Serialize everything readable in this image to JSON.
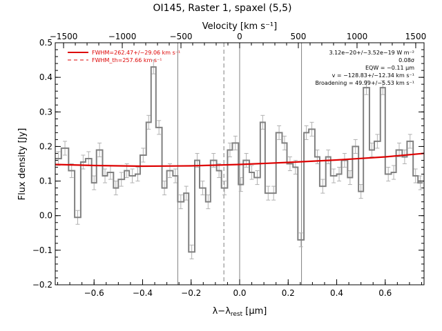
{
  "chart_data": {
    "type": "line",
    "title": "OI145, Raster 1, spaxel (5,5)",
    "xlabel_main": "λ−λ",
    "xlabel_sub": "rest",
    "xlabel_unit": " [μm]",
    "ylabel": "Flux density [Jy]",
    "top_axis_label": "Velocity [km s⁻¹]",
    "xlim": [
      -0.76,
      0.76
    ],
    "ylim": [
      -0.2,
      0.5
    ],
    "xticks": [
      -0.6,
      -0.4,
      -0.2,
      0.0,
      0.2,
      0.4,
      0.6
    ],
    "xtick_labels": [
      "−0.6",
      "−0.4",
      "−0.2",
      "0.0",
      "0.2",
      "0.4",
      "0.6"
    ],
    "yticks": [
      -0.2,
      -0.1,
      0.0,
      0.1,
      0.2,
      0.3,
      0.4,
      0.5
    ],
    "ytick_labels": [
      "−0.2",
      "−0.1",
      "0.0",
      "0.1",
      "0.2",
      "0.3",
      "0.4",
      "0.5"
    ],
    "top_ticks": [
      -1500,
      -1000,
      -500,
      0,
      500,
      1000,
      1500
    ],
    "top_tick_labels": [
      "−1500",
      "−1000",
      "−500",
      "0",
      "500",
      "1000",
      "1500"
    ],
    "velocity_per_micron": 2067,
    "vlines_solid": [
      -0.255,
      0.0,
      0.255
    ],
    "vline_dashed": -0.065,
    "legend": [
      {
        "label": "FWHM=262.47+/−29.06 km s⁻¹",
        "color": "#dd0000",
        "dash": false
      },
      {
        "label": "FWHM_th=257.66 km s⁻¹",
        "color": "#dd0000",
        "dash": true
      }
    ],
    "annotations": [
      "3.12e−20+/−3.52e−19 W m⁻²",
      "0.08σ",
      "EQW = −0.11 μm",
      "v = −128.83+/−12.34 km s⁻¹",
      "Broadening = 49.99+/−5.53 km s⁻¹"
    ],
    "series": [
      {
        "kind": "step",
        "color": "#808080",
        "x": [
          -0.76,
          -0.735,
          -0.705,
          -0.68,
          -0.655,
          -0.635,
          -0.61,
          -0.59,
          -0.565,
          -0.545,
          -0.52,
          -0.5,
          -0.475,
          -0.455,
          -0.43,
          -0.41,
          -0.385,
          -0.365,
          -0.345,
          -0.32,
          -0.3,
          -0.275,
          -0.255,
          -0.23,
          -0.21,
          -0.185,
          -0.165,
          -0.14,
          -0.12,
          -0.095,
          -0.075,
          -0.05,
          -0.03,
          -0.005,
          0.015,
          0.04,
          0.06,
          0.085,
          0.105,
          0.13,
          0.15,
          0.175,
          0.195,
          0.22,
          0.24,
          0.265,
          0.285,
          0.31,
          0.33,
          0.355,
          0.375,
          0.4,
          0.42,
          0.445,
          0.465,
          0.49,
          0.51,
          0.535,
          0.555,
          0.58,
          0.6,
          0.625,
          0.645,
          0.67,
          0.69,
          0.715,
          0.735,
          0.755
        ],
        "y": [
          0.165,
          0.195,
          0.13,
          -0.005,
          0.155,
          0.165,
          0.095,
          0.19,
          0.115,
          0.125,
          0.08,
          0.105,
          0.13,
          0.115,
          0.12,
          0.175,
          0.27,
          0.43,
          0.255,
          0.08,
          0.13,
          0.115,
          0.04,
          0.065,
          -0.105,
          0.16,
          0.08,
          0.04,
          0.16,
          0.13,
          0.08,
          0.19,
          0.21,
          0.09,
          0.16,
          0.125,
          0.11,
          0.27,
          0.065,
          0.065,
          0.24,
          0.21,
          0.15,
          0.14,
          -0.07,
          0.24,
          0.25,
          0.17,
          0.085,
          0.17,
          0.115,
          0.12,
          0.16,
          0.11,
          0.2,
          0.07,
          0.37,
          0.19,
          0.215,
          0.37,
          0.12,
          0.125,
          0.19,
          0.17,
          0.215,
          0.115,
          0.095,
          0.095
        ],
        "err": 0.02
      },
      {
        "kind": "fit",
        "color": "#dd0000",
        "x": [
          -0.76,
          -0.6,
          -0.4,
          -0.2,
          0.0,
          0.2,
          0.4,
          0.6,
          0.76
        ],
        "y": [
          0.148,
          0.145,
          0.143,
          0.144,
          0.148,
          0.154,
          0.161,
          0.17,
          0.18
        ]
      }
    ]
  }
}
